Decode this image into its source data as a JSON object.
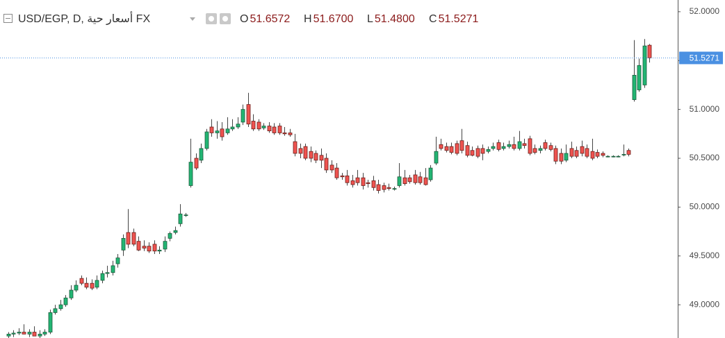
{
  "chart_data": {
    "type": "candlestick",
    "title": "USD/EGP, D, أسعار حية FX",
    "legend_values": [
      {
        "label": "O",
        "value": "51.6572"
      },
      {
        "label": "H",
        "value": "51.6700"
      },
      {
        "label": "L",
        "value": "51.4800"
      },
      {
        "label": "C",
        "value": "51.5271"
      }
    ],
    "up_color": "#22b573",
    "down_color": "#ef5350",
    "price_line_color": "#4a90e2",
    "ylim": [
      48.66,
      52.12
    ],
    "yticks": [
      {
        "value": 49,
        "label": "49.0000"
      },
      {
        "value": 49.5,
        "label": "49.5000"
      },
      {
        "value": 50,
        "label": "50.0000"
      },
      {
        "value": 50.5,
        "label": "50.5000"
      },
      {
        "value": 51,
        "label": "51.0000"
      },
      {
        "value": 51.5,
        "label": "51.5000"
      },
      {
        "value": 52,
        "label": "52.0000"
      }
    ],
    "open": [
      48.68,
      48.7,
      48.71,
      48.72,
      48.7,
      48.72,
      48.68,
      48.7,
      48.72,
      48.92,
      48.96,
      49.0,
      49.07,
      49.15,
      49.27,
      49.22,
      49.22,
      49.18,
      49.25,
      49.32,
      49.33,
      49.42,
      49.56,
      49.74,
      49.74,
      49.65,
      49.6,
      49.6,
      49.62,
      49.55,
      49.57,
      49.68,
      49.74,
      49.83,
      49.92,
      50.22,
      50.5,
      50.48,
      50.6,
      50.82,
      50.76,
      50.8,
      50.76,
      50.8,
      50.82,
      50.87,
      51.05,
      50.88,
      50.87,
      50.81,
      50.83,
      50.82,
      50.83,
      50.76,
      50.76,
      50.67,
      50.6,
      50.62,
      50.57,
      50.55,
      50.53,
      50.5,
      50.43,
      50.4,
      50.32,
      50.32,
      50.27,
      50.3,
      50.3,
      50.25,
      50.27,
      50.23,
      50.22,
      50.2,
      50.19,
      50.22,
      50.3,
      50.3,
      50.33,
      50.31,
      50.3,
      50.28,
      50.45,
      50.64,
      50.62,
      50.62,
      50.65,
      50.68,
      50.63,
      50.58,
      50.6,
      50.6,
      50.57,
      50.6,
      50.66,
      50.6,
      50.62,
      50.64,
      50.6,
      50.65,
      50.7,
      50.6,
      50.58,
      50.66,
      50.63,
      50.6,
      50.55,
      50.48,
      50.6,
      50.58,
      50.62,
      50.6,
      50.57,
      50.56,
      50.55,
      50.52,
      50.52,
      50.52,
      50.54,
      50.58,
      51.1,
      51.2,
      51.25,
      51.6572
    ],
    "high": [
      48.72,
      48.74,
      48.76,
      48.8,
      48.75,
      48.78,
      48.74,
      48.75,
      48.95,
      49.0,
      49.05,
      49.1,
      49.2,
      49.25,
      49.3,
      49.28,
      49.26,
      49.3,
      49.35,
      49.4,
      49.45,
      49.52,
      49.72,
      49.98,
      49.78,
      49.7,
      49.66,
      49.64,
      49.66,
      49.6,
      49.7,
      49.75,
      49.8,
      50.03,
      49.94,
      50.7,
      50.55,
      50.65,
      50.8,
      50.9,
      50.88,
      50.87,
      50.92,
      50.9,
      50.92,
      51.05,
      51.17,
      50.95,
      50.9,
      50.86,
      50.87,
      50.86,
      50.86,
      50.82,
      50.8,
      50.75,
      50.65,
      50.65,
      50.62,
      50.58,
      50.6,
      50.55,
      50.48,
      50.45,
      50.35,
      50.38,
      50.33,
      50.38,
      50.35,
      50.28,
      50.32,
      50.28,
      50.25,
      50.24,
      50.21,
      50.45,
      50.38,
      50.33,
      50.38,
      50.36,
      50.4,
      50.43,
      50.72,
      50.7,
      50.66,
      50.66,
      50.68,
      50.8,
      50.67,
      50.62,
      50.63,
      50.64,
      50.62,
      50.66,
      50.69,
      50.66,
      50.68,
      50.72,
      50.78,
      50.7,
      50.73,
      50.64,
      50.63,
      50.69,
      50.66,
      50.63,
      50.6,
      50.64,
      50.67,
      50.62,
      50.68,
      50.64,
      50.7,
      50.59,
      50.57,
      50.53,
      50.53,
      50.53,
      50.64,
      50.6,
      51.71,
      51.52,
      51.72,
      51.67
    ],
    "low": [
      48.66,
      48.67,
      48.69,
      48.7,
      48.67,
      48.69,
      48.66,
      48.68,
      48.7,
      48.9,
      48.94,
      48.98,
      49.05,
      49.13,
      49.2,
      49.16,
      49.15,
      49.16,
      49.22,
      49.28,
      49.3,
      49.38,
      49.5,
      49.58,
      49.6,
      49.55,
      49.55,
      49.53,
      49.52,
      49.52,
      49.54,
      49.65,
      49.72,
      49.8,
      49.9,
      50.2,
      50.38,
      50.45,
      50.58,
      50.72,
      50.7,
      50.68,
      50.74,
      50.78,
      50.8,
      50.84,
      50.82,
      50.78,
      50.78,
      50.79,
      50.76,
      50.74,
      50.74,
      50.73,
      50.72,
      50.52,
      50.5,
      50.48,
      50.46,
      50.45,
      50.4,
      50.35,
      50.35,
      50.28,
      50.28,
      50.22,
      50.2,
      50.22,
      50.18,
      50.2,
      50.17,
      50.14,
      50.15,
      50.17,
      50.17,
      50.2,
      50.22,
      50.24,
      50.23,
      50.23,
      50.22,
      50.26,
      50.43,
      50.58,
      50.56,
      50.54,
      50.53,
      50.55,
      50.51,
      50.52,
      50.5,
      50.48,
      50.55,
      50.58,
      50.57,
      50.58,
      50.6,
      50.58,
      50.58,
      50.6,
      50.53,
      50.54,
      50.55,
      50.58,
      50.57,
      50.44,
      50.44,
      50.46,
      50.5,
      50.5,
      50.52,
      50.5,
      50.48,
      50.5,
      50.51,
      50.51,
      50.51,
      50.51,
      50.52,
      50.52,
      51.08,
      51.18,
      51.22,
      51.48
    ],
    "close": [
      48.7,
      48.71,
      48.72,
      48.7,
      48.72,
      48.68,
      48.7,
      48.72,
      48.92,
      48.96,
      49.0,
      49.07,
      49.15,
      49.2,
      49.22,
      49.18,
      49.17,
      49.25,
      49.32,
      49.33,
      49.4,
      49.48,
      49.68,
      49.62,
      49.62,
      49.56,
      49.58,
      49.55,
      49.55,
      49.56,
      49.65,
      49.73,
      49.76,
      49.93,
      49.92,
      50.46,
      50.4,
      50.6,
      50.77,
      50.76,
      50.78,
      50.72,
      50.8,
      50.82,
      50.85,
      51.0,
      50.85,
      50.8,
      50.8,
      50.83,
      50.78,
      50.76,
      50.76,
      50.75,
      50.74,
      50.55,
      50.55,
      50.5,
      50.5,
      50.48,
      50.48,
      50.38,
      50.38,
      50.3,
      50.31,
      50.25,
      50.23,
      50.25,
      50.22,
      50.24,
      50.2,
      50.17,
      50.18,
      50.19,
      50.19,
      50.31,
      50.24,
      50.26,
      50.25,
      50.25,
      50.23,
      50.4,
      50.57,
      50.6,
      50.58,
      50.56,
      50.55,
      50.58,
      50.53,
      50.53,
      50.52,
      50.55,
      50.59,
      50.62,
      50.59,
      50.62,
      50.64,
      50.6,
      50.67,
      50.63,
      50.55,
      50.56,
      50.6,
      50.6,
      50.59,
      50.47,
      50.47,
      50.55,
      50.52,
      50.52,
      50.55,
      50.52,
      50.5,
      50.52,
      50.53,
      50.52,
      50.52,
      50.52,
      50.54,
      50.54,
      51.35,
      51.45,
      51.65,
      51.5271
    ]
  }
}
